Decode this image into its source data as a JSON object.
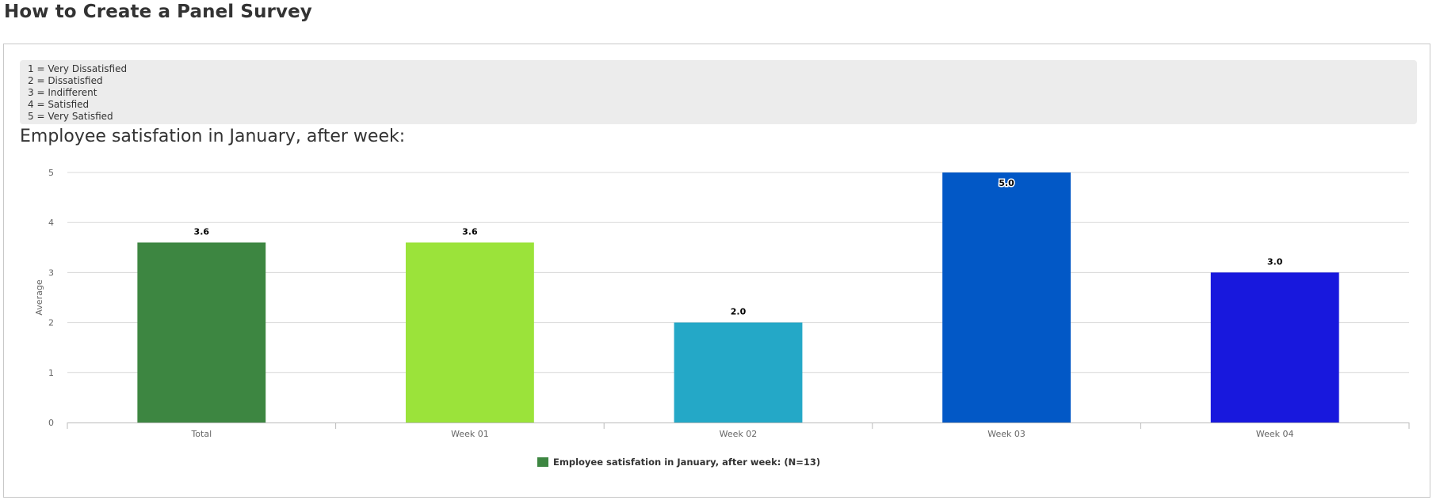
{
  "page": {
    "title": "How to Create a Panel Survey"
  },
  "scale_legend": [
    "1 = Very Dissatisfied",
    "2 = Dissatisfied",
    "3 = Indifferent",
    "4 = Satisfied",
    "5 = Very Satisfied"
  ],
  "chart_data": {
    "type": "bar",
    "title": "Employee satisfation in January, after week:",
    "xlabel": "",
    "ylabel": "Average",
    "ylim": [
      0,
      5
    ],
    "yticks": [
      "0",
      "1",
      "2",
      "3",
      "4",
      "5"
    ],
    "grid": true,
    "categories": [
      "Total",
      "Week 01",
      "Week 02",
      "Week 03",
      "Week 04"
    ],
    "series": [
      {
        "name": "Employee satisfation in January, after week: (N=13)",
        "values": [
          3.6,
          3.6,
          2.0,
          5.0,
          3.0
        ],
        "data_labels": [
          "3.6",
          "3.6",
          "2.0",
          "5.0",
          "3.0"
        ],
        "colors": [
          "#3d8641",
          "#9be33a",
          "#24a8c7",
          "#0258c6",
          "#1818dd"
        ]
      }
    ],
    "legend_position": "bottom-center",
    "colors": {
      "grid": "#d8d8d8",
      "axis": "#bbbbbb"
    }
  }
}
